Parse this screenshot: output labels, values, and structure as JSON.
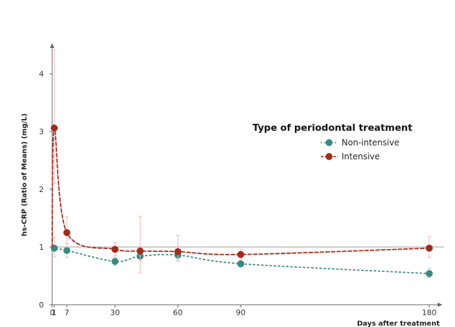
{
  "chart_data": {
    "type": "line",
    "xlabel": "Days after treatment",
    "ylabel": "hs-CRP (Ratio of Means) (mg/L)",
    "xlim": [
      0,
      186
    ],
    "ylim": [
      0,
      4.5
    ],
    "x_ticks": [
      0,
      1,
      7,
      30,
      60,
      90,
      180
    ],
    "y_ticks": [
      0,
      1,
      2,
      3,
      4
    ],
    "reference_line_y": 1,
    "grid": false,
    "legend": {
      "title": "Type of periodontal treatment",
      "position": "right"
    },
    "series": [
      {
        "name": "Non-intensive",
        "color": "#3a8a80",
        "line_style": "dotted",
        "x": [
          1,
          7,
          30,
          42,
          60,
          90,
          180
        ],
        "y": [
          0.98,
          0.94,
          0.75,
          0.84,
          0.86,
          0.71,
          0.54
        ],
        "err_low": [
          0.83,
          0.82,
          0.68,
          0.76,
          0.78,
          0.65,
          0.47
        ],
        "err_high": [
          1.17,
          1.06,
          0.83,
          0.93,
          0.95,
          0.79,
          0.63
        ]
      },
      {
        "name": "Intensive",
        "color": "#a32a1c",
        "line_style": "dashed",
        "x": [
          1,
          7,
          30,
          42,
          60,
          90,
          180
        ],
        "y": [
          3.06,
          1.25,
          0.96,
          0.93,
          0.92,
          0.87,
          0.98
        ],
        "err_low": [
          2.1,
          1.0,
          0.85,
          0.55,
          0.75,
          0.79,
          0.82
        ],
        "err_high": [
          4.41,
          1.52,
          1.08,
          1.53,
          1.2,
          0.96,
          1.18
        ]
      }
    ]
  }
}
